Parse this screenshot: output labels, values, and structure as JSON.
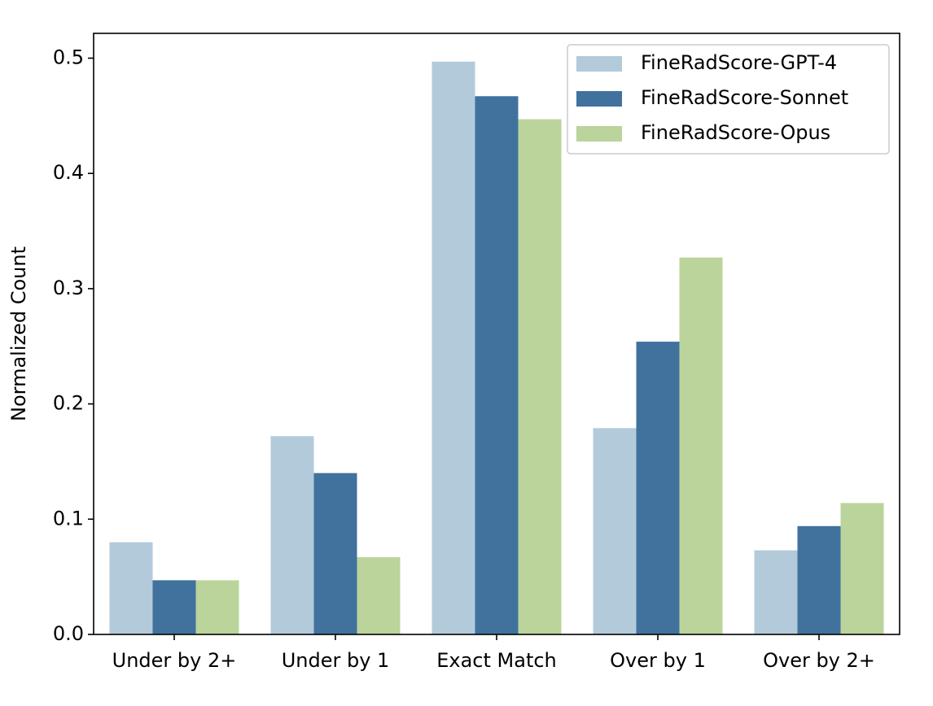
{
  "chart_data": {
    "type": "bar",
    "title": "",
    "xlabel": "",
    "ylabel": "Normalized Count",
    "ylim": [
      0,
      0.52
    ],
    "yticks": [
      0.0,
      0.1,
      0.2,
      0.3,
      0.4,
      0.5
    ],
    "ytick_labels": [
      "0.0",
      "0.1",
      "0.2",
      "0.3",
      "0.4",
      "0.5"
    ],
    "grid": false,
    "legend_position": "top-right",
    "categories": [
      "Under by 2+",
      "Under by 1",
      "Exact Match",
      "Over by 1",
      "Over by 2+"
    ],
    "series": [
      {
        "name": "FineRadScore-GPT-4",
        "color": "#b3cadb",
        "values": [
          0.08,
          0.172,
          0.497,
          0.179,
          0.073
        ]
      },
      {
        "name": "FineRadScore-Sonnet",
        "color": "#41729e",
        "values": [
          0.047,
          0.14,
          0.467,
          0.254,
          0.094
        ]
      },
      {
        "name": "FineRadScore-Opus",
        "color": "#bad49b",
        "values": [
          0.047,
          0.067,
          0.447,
          0.327,
          0.114
        ]
      }
    ]
  }
}
